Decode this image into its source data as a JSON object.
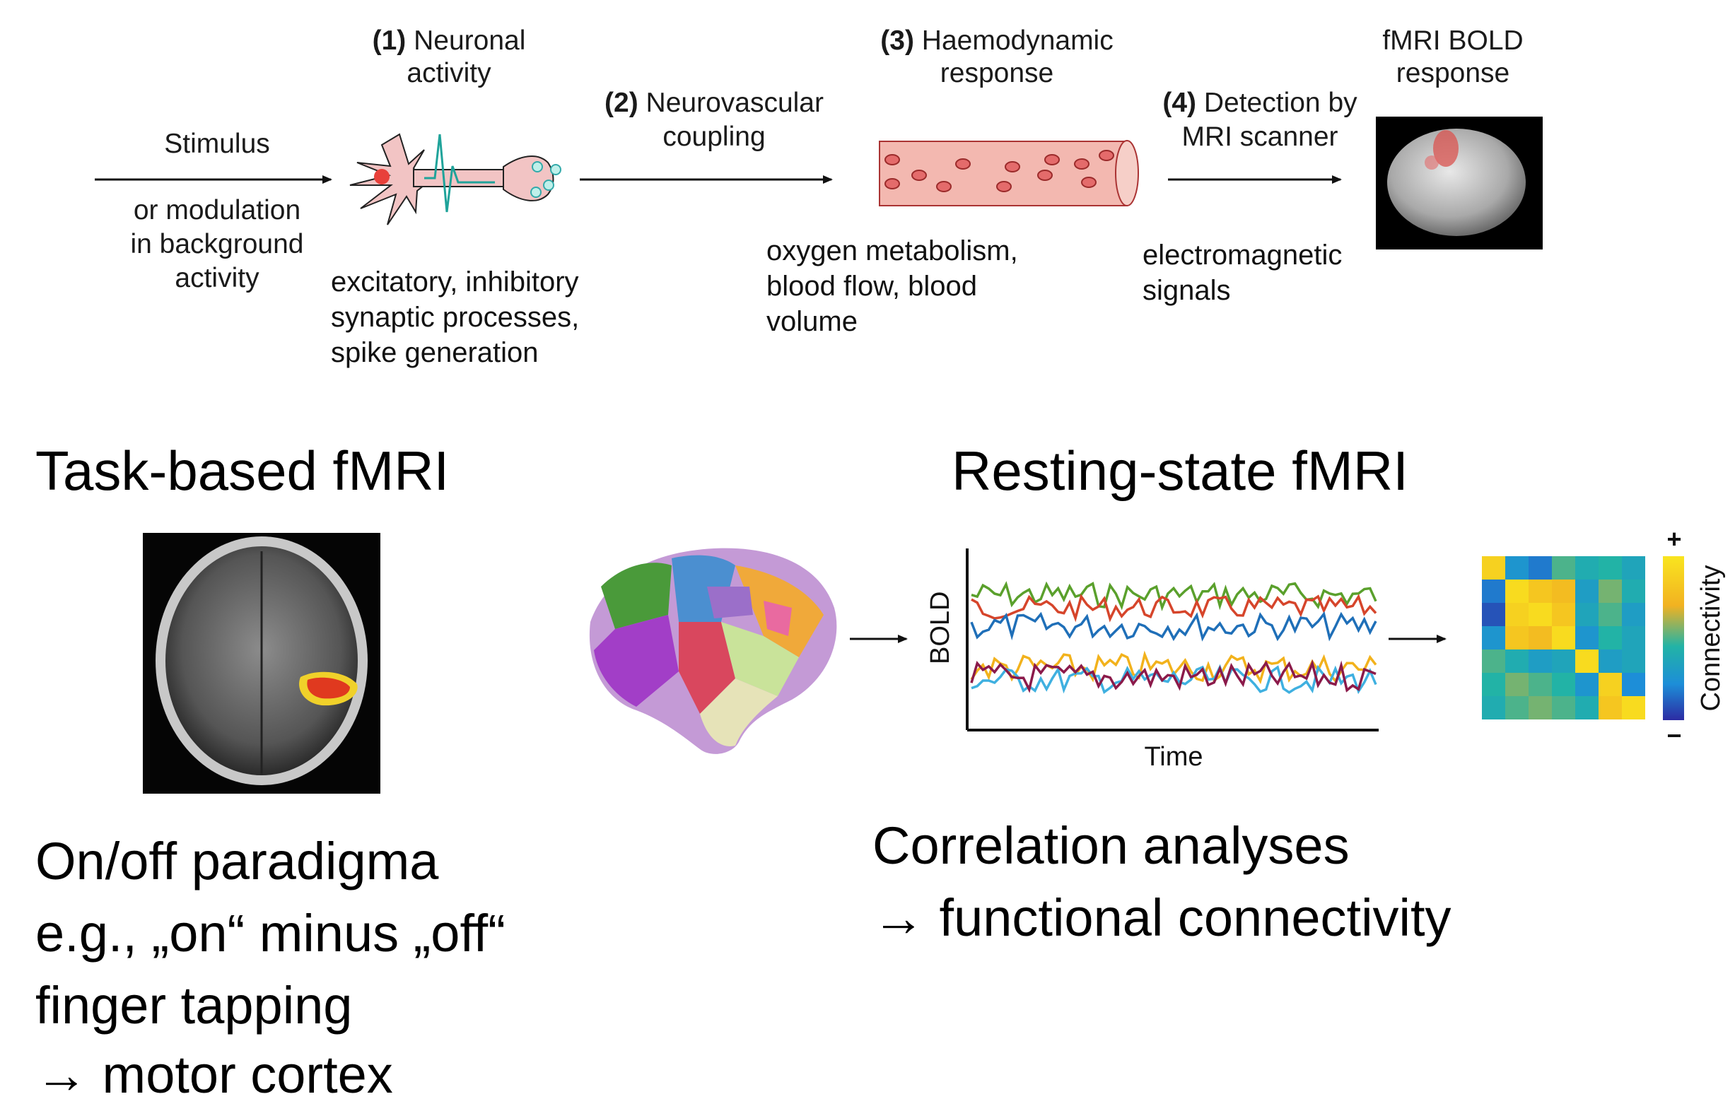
{
  "pipeline": {
    "stimulus": {
      "label": "Stimulus",
      "sub": "or modulation\nin background\nactivity"
    },
    "step1": {
      "num": "(1)",
      "title_a": "Neuronal",
      "title_b": "activity",
      "desc": "excitatory,  inhibitory\nsynaptic  processes,\nspike generation"
    },
    "step2": {
      "num": "(2)",
      "title_a": "Neurovascular",
      "title_b": "coupling"
    },
    "step3": {
      "num": "(3)",
      "title_a": "Haemodynamic",
      "title_b": "response",
      "desc": "oxygen  metabolism,\nblood flow,  blood\nvolume"
    },
    "step4": {
      "num": "(4)",
      "title_a": "Detection by",
      "title_b": "MRI scanner",
      "desc": "electromagnetic\nsignals"
    },
    "output": {
      "title_a": "fMRI BOLD",
      "title_b": "response"
    }
  },
  "task": {
    "heading": "Task-based  fMRI",
    "lines": [
      "On/off paradigma",
      "e.g., „on“ minus „off“",
      "finger tapping",
      "→ motor cortex"
    ]
  },
  "rest": {
    "heading": "Resting-state fMRI",
    "lines": [
      "Correlation  analyses",
      "→ functional connectivity"
    ],
    "ts_ylabel": "BOLD",
    "ts_xlabel": "Time",
    "cbar_label": "Connectivity",
    "cbar_plus": "+",
    "cbar_minus": "−"
  },
  "colors": {
    "series": [
      "#5aa02c",
      "#d6452b",
      "#1f6fb8",
      "#f2b21c",
      "#3fb0e0",
      "#8b1a4a"
    ],
    "vessel": "#f3b8b0",
    "neuron": "#f2c4c4"
  },
  "connectivity_matrix": [
    [
      0.9,
      0.3,
      0.2,
      0.55,
      0.45,
      0.5,
      0.4
    ],
    [
      0.2,
      0.95,
      0.85,
      0.8,
      0.35,
      0.6,
      0.45
    ],
    [
      0.1,
      0.9,
      0.95,
      0.85,
      0.4,
      0.55,
      0.35
    ],
    [
      0.3,
      0.85,
      0.8,
      0.95,
      0.3,
      0.5,
      0.4
    ],
    [
      0.55,
      0.45,
      0.35,
      0.4,
      0.95,
      0.35,
      0.4
    ],
    [
      0.5,
      0.6,
      0.55,
      0.5,
      0.3,
      0.9,
      0.25
    ],
    [
      0.45,
      0.55,
      0.6,
      0.55,
      0.45,
      0.85,
      0.95
    ]
  ]
}
